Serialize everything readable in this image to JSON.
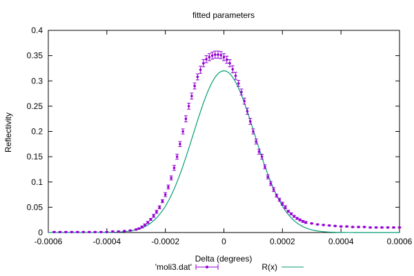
{
  "chart_data": {
    "type": "scatter",
    "title": "fitted parameters",
    "xlabel": "Delta (degrees)",
    "ylabel": "Reflectivity",
    "xlim": [
      -0.0006,
      0.0006
    ],
    "ylim": [
      0,
      0.4
    ],
    "x_ticks": [
      "-0.0006",
      "-0.0004",
      "-0.0002",
      "0",
      "0.0002",
      "0.0004",
      "0.0006"
    ],
    "y_ticks": [
      "0",
      "0.05",
      "0.1",
      "0.15",
      "0.2",
      "0.25",
      "0.3",
      "0.35",
      "0.4"
    ],
    "x_tick_values": [
      -0.0006,
      -0.0004,
      -0.0002,
      0,
      0.0002,
      0.0004,
      0.0006
    ],
    "y_tick_values": [
      0,
      0.05,
      0.1,
      0.15,
      0.2,
      0.25,
      0.3,
      0.35,
      0.4
    ],
    "grid": false,
    "legend_position": "bottom",
    "series": [
      {
        "name": "'moli3.dat'",
        "style": "points-with-errorbars",
        "color": "#9400d3",
        "x": [
          -0.00058,
          -0.00056,
          -0.00054,
          -0.00052,
          -0.0005,
          -0.00048,
          -0.00046,
          -0.00044,
          -0.00042,
          -0.0004,
          -0.00038,
          -0.00036,
          -0.00034,
          -0.00032,
          -0.0003,
          -0.00029,
          -0.00028,
          -0.00027,
          -0.00026,
          -0.00025,
          -0.00024,
          -0.00023,
          -0.00022,
          -0.00021,
          -0.0002,
          -0.00019,
          -0.00018,
          -0.00017,
          -0.00016,
          -0.00015,
          -0.00014,
          -0.00013,
          -0.00012,
          -0.00011,
          -0.0001,
          -9e-05,
          -8e-05,
          -7e-05,
          -6e-05,
          -5e-05,
          -4e-05,
          -3e-05,
          -2e-05,
          -1e-05,
          0,
          1e-05,
          2e-05,
          3e-05,
          4e-05,
          5e-05,
          6e-05,
          7e-05,
          8e-05,
          9e-05,
          0.0001,
          0.00011,
          0.00012,
          0.00013,
          0.00014,
          0.00015,
          0.00016,
          0.00017,
          0.00018,
          0.00019,
          0.0002,
          0.00021,
          0.00022,
          0.00023,
          0.00024,
          0.00025,
          0.00026,
          0.00027,
          0.00028,
          0.0003,
          0.00032,
          0.00034,
          0.00036,
          0.00038,
          0.0004,
          0.00042,
          0.00044,
          0.00046,
          0.00048,
          0.0005,
          0.00052,
          0.00054,
          0.00056,
          0.00058,
          0.0006
        ],
        "y": [
          0.001,
          0.001,
          0.001,
          0.001,
          0.001,
          0.001,
          0.001,
          0.001,
          0.001,
          0.001,
          0.002,
          0.002,
          0.003,
          0.004,
          0.006,
          0.008,
          0.011,
          0.015,
          0.02,
          0.026,
          0.033,
          0.041,
          0.05,
          0.062,
          0.075,
          0.09,
          0.108,
          0.128,
          0.15,
          0.175,
          0.2,
          0.225,
          0.25,
          0.27,
          0.29,
          0.308,
          0.322,
          0.335,
          0.343,
          0.347,
          0.35,
          0.352,
          0.352,
          0.351,
          0.347,
          0.342,
          0.335,
          0.323,
          0.31,
          0.295,
          0.278,
          0.26,
          0.24,
          0.22,
          0.2,
          0.18,
          0.16,
          0.15,
          0.13,
          0.11,
          0.097,
          0.085,
          0.073,
          0.065,
          0.057,
          0.05,
          0.042,
          0.037,
          0.032,
          0.028,
          0.025,
          0.022,
          0.02,
          0.018,
          0.016,
          0.015,
          0.014,
          0.013,
          0.012,
          0.012,
          0.011,
          0.011,
          0.011,
          0.01,
          0.01,
          0.01,
          0.01,
          0.01,
          0.01
        ],
        "err": [
          0.001,
          0.001,
          0.001,
          0.001,
          0.001,
          0.001,
          0.001,
          0.001,
          0.001,
          0.001,
          0.001,
          0.001,
          0.001,
          0.001,
          0.001,
          0.001,
          0.002,
          0.002,
          0.002,
          0.002,
          0.003,
          0.003,
          0.003,
          0.003,
          0.004,
          0.004,
          0.004,
          0.005,
          0.005,
          0.005,
          0.005,
          0.006,
          0.006,
          0.006,
          0.006,
          0.006,
          0.007,
          0.007,
          0.007,
          0.007,
          0.007,
          0.007,
          0.007,
          0.007,
          0.007,
          0.007,
          0.007,
          0.007,
          0.007,
          0.006,
          0.006,
          0.006,
          0.006,
          0.006,
          0.005,
          0.005,
          0.005,
          0.005,
          0.004,
          0.004,
          0.004,
          0.004,
          0.003,
          0.003,
          0.003,
          0.003,
          0.002,
          0.002,
          0.002,
          0.002,
          0.002,
          0.002,
          0.002,
          0.001,
          0.001,
          0.001,
          0.001,
          0.001,
          0.001,
          0.001,
          0.001,
          0.001,
          0.001,
          0.001,
          0.001,
          0.001,
          0.001,
          0.001,
          0.001
        ]
      },
      {
        "name": "R(x)",
        "style": "line",
        "color": "#009e73",
        "model": "gaussian",
        "amplitude": 0.32,
        "center": 0,
        "sigma": 0.000105,
        "x_range": [
          -0.0006,
          0.0006
        ]
      }
    ]
  }
}
